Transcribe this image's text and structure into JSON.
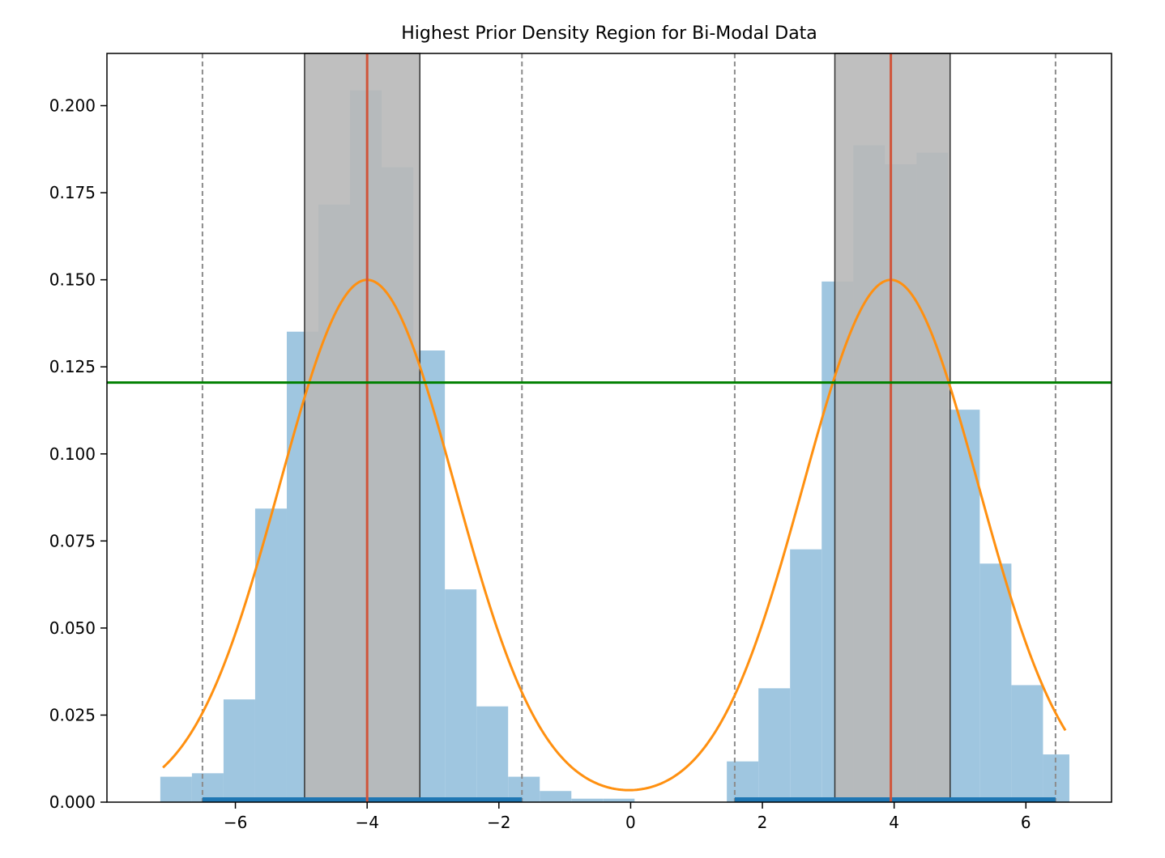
{
  "chart_data": {
    "type": "bar",
    "title": "Highest Prior Density Region for Bi-Modal Data",
    "xlabel": "",
    "ylabel": "",
    "xlim": [
      -7.95,
      7.3
    ],
    "ylim": [
      0,
      0.215
    ],
    "x_ticks": [
      {
        "value": -6,
        "label": "−6"
      },
      {
        "value": -4,
        "label": "−4"
      },
      {
        "value": -2,
        "label": "−2"
      },
      {
        "value": 0,
        "label": "0"
      },
      {
        "value": 2,
        "label": "2"
      },
      {
        "value": 4,
        "label": "4"
      },
      {
        "value": 6,
        "label": "6"
      }
    ],
    "y_ticks": [
      {
        "value": 0.0,
        "label": "0.000"
      },
      {
        "value": 0.025,
        "label": "0.025"
      },
      {
        "value": 0.05,
        "label": "0.050"
      },
      {
        "value": 0.075,
        "label": "0.075"
      },
      {
        "value": 0.1,
        "label": "0.100"
      },
      {
        "value": 0.125,
        "label": "0.125"
      },
      {
        "value": 0.15,
        "label": "0.150"
      },
      {
        "value": 0.175,
        "label": "0.175"
      },
      {
        "value": 0.2,
        "label": "0.200"
      }
    ],
    "grid": false,
    "colors": {
      "histogram": "#9fc6e0",
      "density_curve": "#ff9010",
      "hpd_box": "#b8b8b8",
      "mode_line": "#d0553a",
      "threshold_line": "#008000",
      "bound_line": "#8c8c8c",
      "interval_bar": "#1f77b4"
    },
    "histogram": {
      "bin_edges": [
        -7.14,
        -6.66,
        -6.18,
        -5.7,
        -5.22,
        -4.74,
        -4.26,
        -3.78,
        -3.3,
        -2.82,
        -2.34,
        -1.86,
        -1.38,
        -0.9,
        -0.42,
        0.06,
        0.54,
        1.02,
        1.46,
        1.94,
        2.42,
        2.9,
        3.38,
        3.86,
        4.34,
        4.82,
        5.3,
        5.78,
        6.26,
        6.66
      ],
      "values": [
        0.0073,
        0.0083,
        0.0295,
        0.0843,
        0.1351,
        0.1716,
        0.2044,
        0.1823,
        0.1297,
        0.0611,
        0.0275,
        0.0073,
        0.0032,
        0.001,
        0.001,
        0.0,
        0.0,
        0.0,
        0.0117,
        0.0327,
        0.0726,
        0.1495,
        0.1886,
        0.1832,
        0.1865,
        0.1127,
        0.0685,
        0.0336,
        0.0137
      ]
    },
    "density_curve": {
      "components": [
        {
          "mean": -4.0,
          "sd": 1.33,
          "weight": 0.5
        },
        {
          "mean": 3.95,
          "sd": 1.33,
          "weight": 0.5
        }
      ],
      "x_range": [
        -7.1,
        6.6
      ]
    },
    "hpd_threshold": 0.1205,
    "hpd_regions": [
      [
        -4.95,
        -3.2
      ],
      [
        3.1,
        4.85
      ]
    ],
    "modes": [
      -4.0,
      3.95
    ],
    "dashed_bounds": [
      -6.5,
      -1.65,
      1.58,
      6.45
    ],
    "intervals": [
      [
        -6.5,
        -1.65
      ],
      [
        1.58,
        6.45
      ]
    ]
  }
}
